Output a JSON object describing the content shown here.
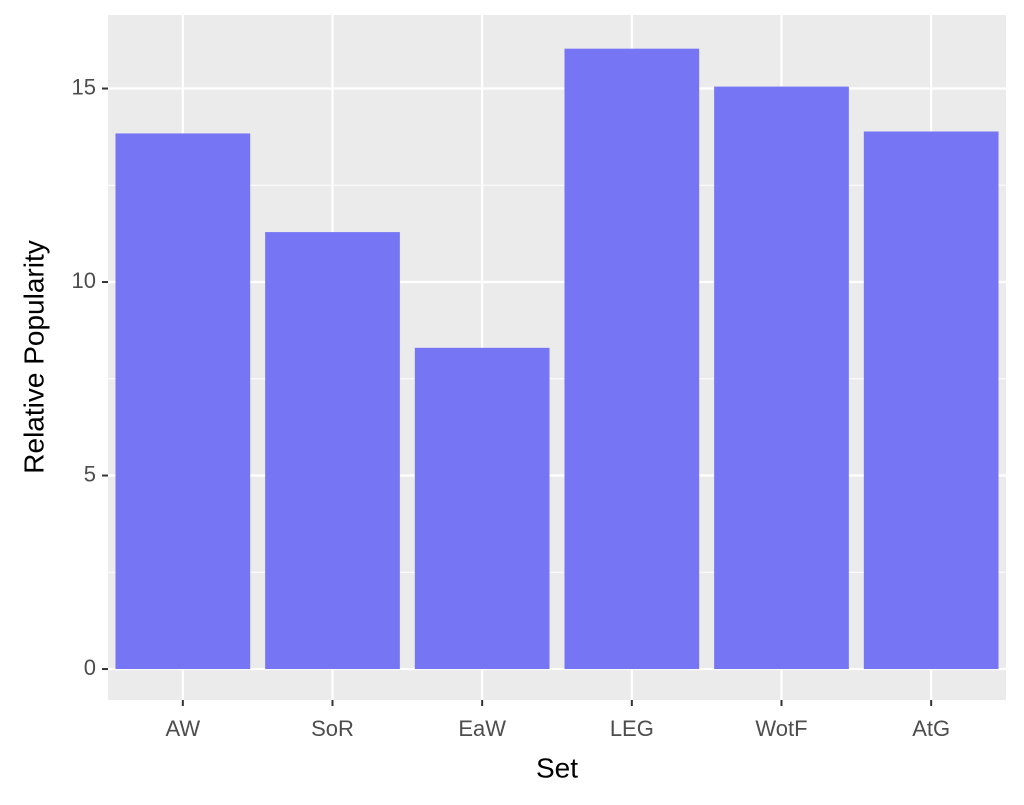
{
  "chart_data": {
    "type": "bar",
    "x_label": "Set",
    "y_label": "Relative Popularity",
    "categories": [
      "AW",
      "SoR",
      "EaW",
      "LEG",
      "WotF",
      "AtG"
    ],
    "values": [
      13.84,
      11.29,
      8.3,
      16.03,
      15.05,
      13.89
    ],
    "color": "#7676f5",
    "ylim": [
      -0.8,
      16.9
    ],
    "yticks": [
      0,
      5,
      10,
      15
    ],
    "grid": true,
    "minor_grid": true
  }
}
